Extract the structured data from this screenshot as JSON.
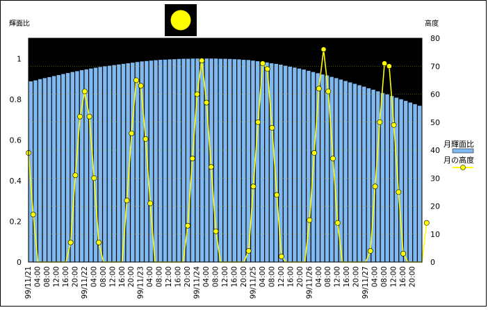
{
  "chart_data": {
    "type": "bar",
    "title": "",
    "moon_icon": "full-moon-icon",
    "left_axis_title": "輝面比",
    "right_axis_title": "高度",
    "left_axis": {
      "ylim": [
        0,
        1.1
      ],
      "ticks": [
        "0",
        "0.2",
        "0.4",
        "0.6",
        "0.8",
        "1"
      ]
    },
    "right_axis": {
      "ylim": [
        0,
        80
      ],
      "ticks": [
        "0",
        "10",
        "20",
        "30",
        "40",
        "50",
        "60",
        "70",
        "80"
      ]
    },
    "x_tick_labels": [
      "99/11/21",
      "04:00",
      "08:00",
      "12:00",
      "16:00",
      "20:00",
      "99/11/22",
      "04:00",
      "08:00",
      "12:00",
      "16:00",
      "20:00",
      "99/11/23",
      "04:00",
      "08:00",
      "12:00",
      "16:00",
      "20:00",
      "99/11/24",
      "04:00",
      "08:00",
      "12:00",
      "16:00",
      "20:00",
      "99/11/25",
      "04:00",
      "08:00",
      "12:00",
      "16:00",
      "20:00",
      "99/11/26",
      "04:00",
      "08:00",
      "12:00",
      "16:00",
      "20:00",
      "99/11/27",
      "04:00",
      "08:00",
      "12:00",
      "16:00",
      "20:00"
    ],
    "x_start_hour": 0,
    "x_step_hours": 2,
    "total_hours": 168,
    "grid": true,
    "legend_position": "right",
    "series": [
      {
        "name": "月輝面比",
        "type": "bar",
        "axis": "left",
        "color": "#80b8f0",
        "values": [
          0.888,
          0.893,
          0.899,
          0.904,
          0.909,
          0.914,
          0.919,
          0.924,
          0.929,
          0.934,
          0.938,
          0.943,
          0.947,
          0.951,
          0.955,
          0.959,
          0.962,
          0.965,
          0.968,
          0.971,
          0.974,
          0.977,
          0.98,
          0.983,
          0.986,
          0.988,
          0.99,
          0.992,
          0.994,
          0.995,
          0.996,
          0.997,
          0.998,
          0.999,
          0.999,
          1.0,
          1.0,
          1.0,
          1.0,
          1.0,
          1.0,
          0.999,
          0.999,
          0.998,
          0.997,
          0.996,
          0.994,
          0.993,
          0.99,
          0.987,
          0.985,
          0.981,
          0.977,
          0.974,
          0.97,
          0.965,
          0.96,
          0.956,
          0.951,
          0.946,
          0.94,
          0.934,
          0.928,
          0.922,
          0.917,
          0.91,
          0.904,
          0.897,
          0.89,
          0.883,
          0.876,
          0.869,
          0.862,
          0.854,
          0.847,
          0.839,
          0.831,
          0.824,
          0.816,
          0.808,
          0.8,
          0.792,
          0.784,
          0.776,
          0.768
        ]
      },
      {
        "name": "月の高度",
        "type": "line",
        "axis": "right",
        "color": "#ffff00",
        "points": [
          [
            0,
            39
          ],
          [
            1,
            17
          ],
          [
            2,
            0
          ],
          [
            8,
            0
          ],
          [
            9,
            7
          ],
          [
            10,
            31
          ],
          [
            11,
            52
          ],
          [
            12,
            61
          ],
          [
            13,
            52
          ],
          [
            14,
            30
          ],
          [
            15,
            7
          ],
          [
            16,
            0
          ],
          [
            20,
            0
          ],
          [
            21,
            22
          ],
          [
            22,
            46
          ],
          [
            23,
            65
          ],
          [
            24,
            63
          ],
          [
            25,
            44
          ],
          [
            26,
            21
          ],
          [
            27,
            0
          ],
          [
            33,
            0
          ],
          [
            34,
            13
          ],
          [
            35,
            37
          ],
          [
            36,
            60
          ],
          [
            37,
            72
          ],
          [
            38,
            57
          ],
          [
            39,
            34
          ],
          [
            40,
            11
          ],
          [
            41,
            0
          ],
          [
            46,
            0
          ],
          [
            47,
            4
          ],
          [
            48,
            27
          ],
          [
            49,
            50
          ],
          [
            50,
            71
          ],
          [
            51,
            69
          ],
          [
            52,
            48
          ],
          [
            53,
            24
          ],
          [
            54,
            2
          ],
          [
            55,
            0
          ],
          [
            59,
            0
          ],
          [
            60,
            15
          ],
          [
            61,
            39
          ],
          [
            62,
            62
          ],
          [
            63,
            76
          ],
          [
            64,
            61
          ],
          [
            65,
            37
          ],
          [
            66,
            14
          ],
          [
            67,
            0
          ],
          [
            72,
            0
          ],
          [
            73,
            4
          ],
          [
            74,
            27
          ],
          [
            75,
            50
          ],
          [
            76,
            71
          ],
          [
            77,
            70
          ],
          [
            78,
            49
          ],
          [
            79,
            25
          ],
          [
            80,
            3
          ],
          [
            81,
            0
          ],
          [
            84,
            0
          ],
          [
            85,
            14
          ]
        ]
      }
    ]
  }
}
